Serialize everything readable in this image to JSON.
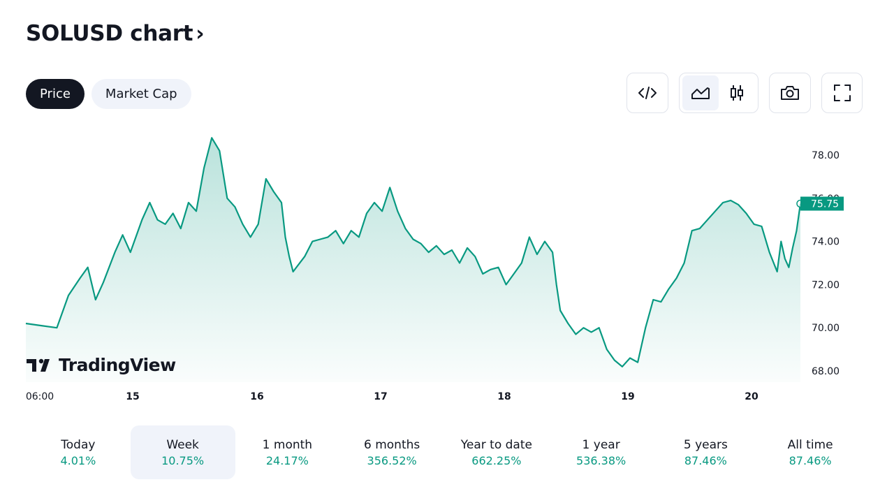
{
  "header": {
    "title": "SOLUSD chart",
    "chevron": "›"
  },
  "tabs": [
    {
      "label": "Price",
      "active": true
    },
    {
      "label": "Market Cap",
      "active": false
    }
  ],
  "toolbar": {
    "icons": [
      "embed-code-icon",
      "area-chart-icon",
      "candlestick-icon",
      "camera-icon",
      "fullscreen-icon"
    ],
    "selected_style": "area"
  },
  "watermark": {
    "text": "TradingView"
  },
  "colors": {
    "line": "#089981",
    "text": "#131722",
    "muted": "#f0f3fa",
    "positive": "#089981"
  },
  "chart_data": {
    "type": "area",
    "symbol": "SOLUSD",
    "ylim": [
      67.5,
      79.2
    ],
    "y_ticks": [
      "78.00",
      "76.00",
      "74.00",
      "72.00",
      "70.00",
      "68.00"
    ],
    "x_ticks": [
      "06:00",
      "15",
      "16",
      "17",
      "18",
      "19",
      "20"
    ],
    "last_price": "75.75",
    "points": [
      [
        0,
        70.2
      ],
      [
        0.02,
        70.1
      ],
      [
        0.04,
        70.0
      ],
      [
        0.055,
        71.5
      ],
      [
        0.07,
        72.3
      ],
      [
        0.08,
        72.8
      ],
      [
        0.09,
        71.3
      ],
      [
        0.1,
        72.1
      ],
      [
        0.115,
        73.5
      ],
      [
        0.125,
        74.3
      ],
      [
        0.135,
        73.5
      ],
      [
        0.15,
        75.0
      ],
      [
        0.16,
        75.8
      ],
      [
        0.17,
        75.0
      ],
      [
        0.18,
        74.8
      ],
      [
        0.19,
        75.3
      ],
      [
        0.2,
        74.6
      ],
      [
        0.21,
        75.8
      ],
      [
        0.22,
        75.4
      ],
      [
        0.23,
        77.4
      ],
      [
        0.24,
        78.8
      ],
      [
        0.25,
        78.2
      ],
      [
        0.26,
        76.0
      ],
      [
        0.27,
        75.6
      ],
      [
        0.28,
        74.8
      ],
      [
        0.29,
        74.2
      ],
      [
        0.3,
        74.8
      ],
      [
        0.31,
        76.9
      ],
      [
        0.32,
        76.3
      ],
      [
        0.33,
        75.8
      ],
      [
        0.335,
        74.2
      ],
      [
        0.34,
        73.3
      ],
      [
        0.345,
        72.6
      ],
      [
        0.36,
        73.3
      ],
      [
        0.37,
        74.0
      ],
      [
        0.38,
        74.1
      ],
      [
        0.39,
        74.2
      ],
      [
        0.4,
        74.5
      ],
      [
        0.41,
        73.9
      ],
      [
        0.42,
        74.5
      ],
      [
        0.43,
        74.2
      ],
      [
        0.44,
        75.3
      ],
      [
        0.45,
        75.8
      ],
      [
        0.46,
        75.4
      ],
      [
        0.47,
        76.5
      ],
      [
        0.48,
        75.4
      ],
      [
        0.49,
        74.6
      ],
      [
        0.5,
        74.1
      ],
      [
        0.51,
        73.9
      ],
      [
        0.52,
        73.5
      ],
      [
        0.53,
        73.8
      ],
      [
        0.54,
        73.4
      ],
      [
        0.55,
        73.6
      ],
      [
        0.56,
        73.0
      ],
      [
        0.57,
        73.7
      ],
      [
        0.58,
        73.3
      ],
      [
        0.59,
        72.5
      ],
      [
        0.6,
        72.7
      ],
      [
        0.61,
        72.8
      ],
      [
        0.62,
        72.0
      ],
      [
        0.63,
        72.5
      ],
      [
        0.64,
        73.0
      ],
      [
        0.65,
        74.2
      ],
      [
        0.66,
        73.4
      ],
      [
        0.67,
        74.0
      ],
      [
        0.68,
        73.5
      ],
      [
        0.685,
        72.0
      ],
      [
        0.69,
        70.8
      ],
      [
        0.7,
        70.2
      ],
      [
        0.71,
        69.7
      ],
      [
        0.72,
        70.0
      ],
      [
        0.73,
        69.8
      ],
      [
        0.74,
        70.0
      ],
      [
        0.75,
        69.0
      ],
      [
        0.76,
        68.5
      ],
      [
        0.77,
        68.2
      ],
      [
        0.78,
        68.6
      ],
      [
        0.79,
        68.4
      ],
      [
        0.8,
        70.0
      ],
      [
        0.81,
        71.3
      ],
      [
        0.82,
        71.2
      ],
      [
        0.83,
        71.8
      ],
      [
        0.84,
        72.3
      ],
      [
        0.85,
        73.0
      ],
      [
        0.86,
        74.5
      ],
      [
        0.87,
        74.6
      ],
      [
        0.88,
        75.0
      ],
      [
        0.89,
        75.4
      ],
      [
        0.9,
        75.8
      ],
      [
        0.91,
        75.9
      ],
      [
        0.92,
        75.7
      ],
      [
        0.93,
        75.3
      ],
      [
        0.94,
        74.8
      ],
      [
        0.95,
        74.7
      ],
      [
        0.96,
        73.5
      ],
      [
        0.97,
        72.6
      ],
      [
        0.975,
        74.0
      ],
      [
        0.98,
        73.2
      ],
      [
        0.985,
        72.8
      ],
      [
        0.99,
        73.7
      ],
      [
        0.995,
        74.5
      ],
      [
        1.0,
        75.75
      ]
    ]
  },
  "periods": [
    {
      "label": "Today",
      "value": "4.01%",
      "selected": false
    },
    {
      "label": "Week",
      "value": "10.75%",
      "selected": true
    },
    {
      "label": "1 month",
      "value": "24.17%",
      "selected": false
    },
    {
      "label": "6 months",
      "value": "356.52%",
      "selected": false
    },
    {
      "label": "Year to date",
      "value": "662.25%",
      "selected": false
    },
    {
      "label": "1 year",
      "value": "536.38%",
      "selected": false
    },
    {
      "label": "5 years",
      "value": "87.46%",
      "selected": false
    },
    {
      "label": "All time",
      "value": "87.46%",
      "selected": false
    }
  ]
}
